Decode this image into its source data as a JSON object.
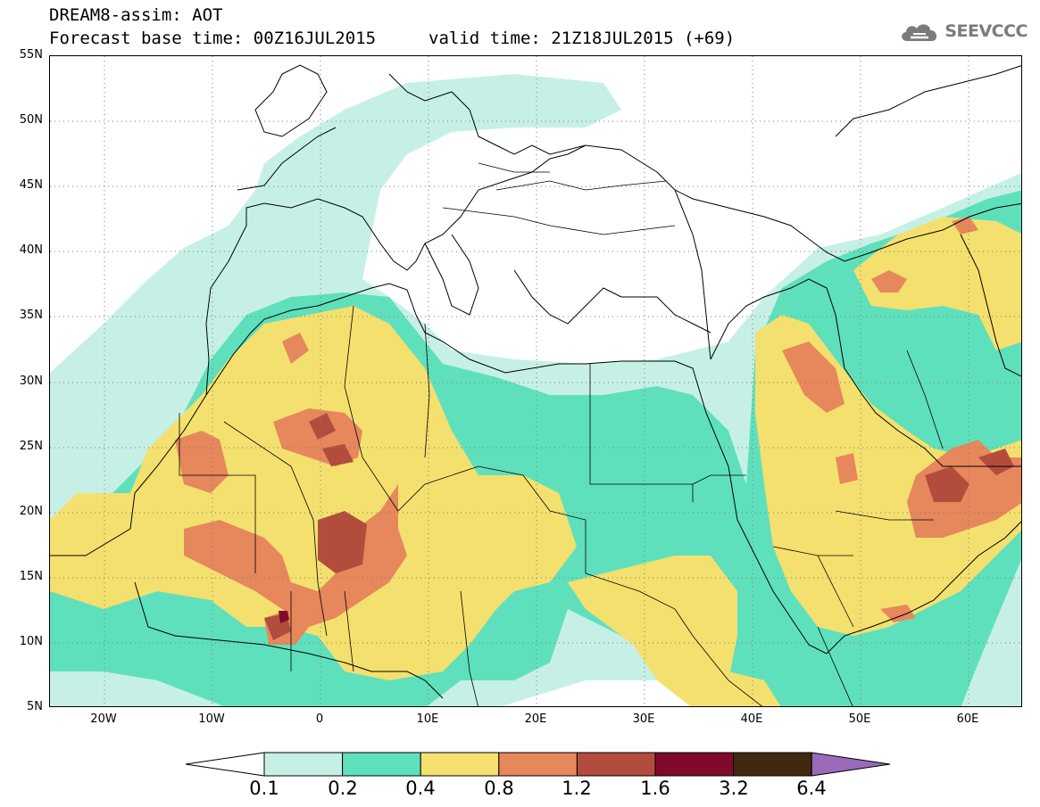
{
  "header": {
    "title": "DREAM8-assim: AOT",
    "forecast_base_time": "Forecast base time: 00Z16JUL2015",
    "valid_time": "valid time: 21Z18JUL2015 (+69)"
  },
  "logo": {
    "text": "SEEVCCC",
    "icon": "cloud-icon",
    "color": "#7b7b7b"
  },
  "map": {
    "lon_range": [
      -25,
      65
    ],
    "lat_range": [
      5,
      55
    ],
    "lat_ticks": [
      "55N",
      "50N",
      "45N",
      "40N",
      "35N",
      "30N",
      "25N",
      "20N",
      "15N",
      "10N",
      "5N"
    ],
    "lon_ticks": [
      "20W",
      "10W",
      "0",
      "10E",
      "20E",
      "30E",
      "40E",
      "50E",
      "60E"
    ],
    "grid": "dotted",
    "ocean_color": "#ffffff"
  },
  "colorbar": {
    "labels": [
      "0.1",
      "0.2",
      "0.4",
      "0.8",
      "1.2",
      "1.6",
      "3.2",
      "6.4"
    ],
    "colors": [
      "#c6f0e6",
      "#5fe0bc",
      "#f4e06e",
      "#e6875c",
      "#b24d3e",
      "#800a2c",
      "#412810",
      "#9a6ab8"
    ],
    "lower_extension_color": "#ffffff",
    "upper_extension_color": "#9a6ab8"
  }
}
